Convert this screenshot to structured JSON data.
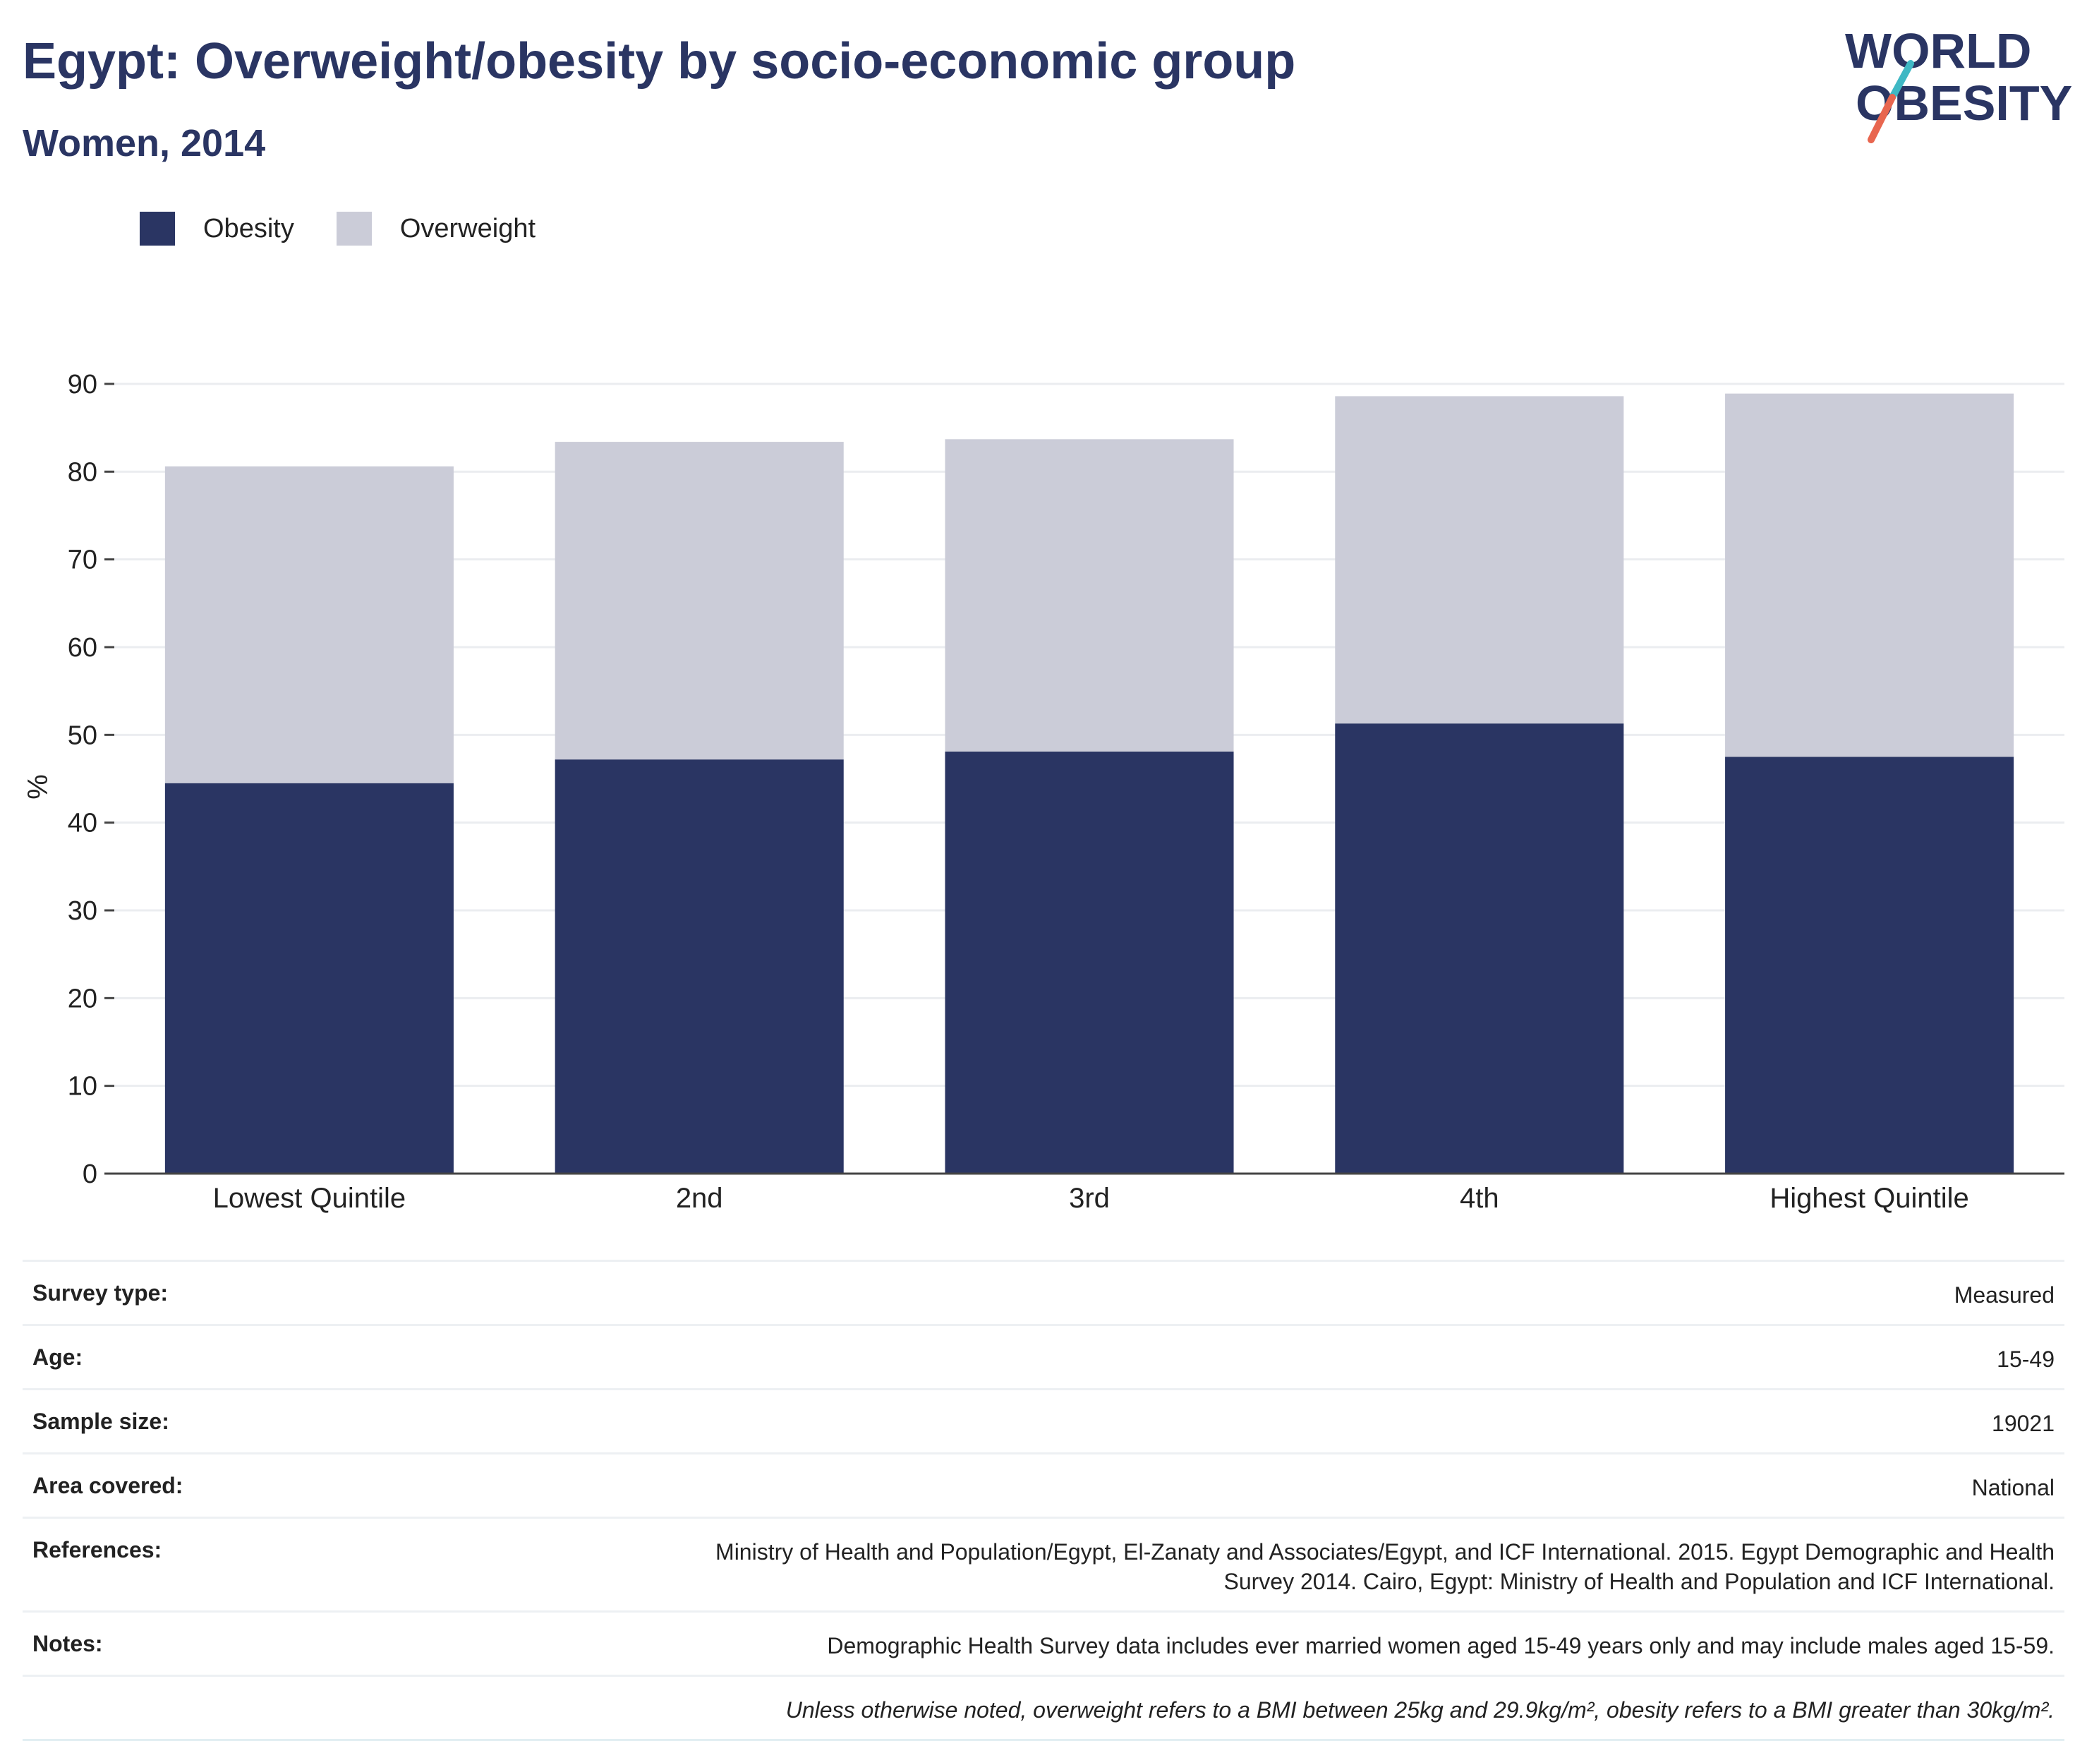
{
  "header": {
    "title": "Egypt: Overweight/obesity by socio-economic group",
    "subtitle": "Women, 2014"
  },
  "logo": {
    "line1": "WORLD",
    "line2": "OBESITY",
    "accent_colors": [
      "#3fb8c4",
      "#e8664f"
    ]
  },
  "colors": {
    "obesity": "#2a3563",
    "overweight": "#cbccd8",
    "grid": "#ebedf0",
    "axis": "#444444"
  },
  "chart_data": {
    "type": "bar",
    "stacked": true,
    "categories": [
      "Lowest Quintile",
      "2nd",
      "3rd",
      "4th",
      "Highest Quintile"
    ],
    "series": [
      {
        "name": "Obesity",
        "values": [
          44.5,
          47.2,
          48.1,
          51.3,
          47.5
        ]
      },
      {
        "name": "Overweight",
        "values": [
          36.1,
          36.2,
          35.6,
          37.3,
          41.4
        ]
      }
    ],
    "totals": [
      80.6,
      83.4,
      83.7,
      88.6,
      88.9
    ],
    "ylabel": "%",
    "xlabel": "",
    "ylim": [
      0,
      90
    ],
    "yticks": [
      0,
      10,
      20,
      30,
      40,
      50,
      60,
      70,
      80,
      90
    ],
    "grid": true,
    "legend_position": "top-left"
  },
  "info": {
    "survey_type": {
      "label": "Survey type:",
      "value": "Measured"
    },
    "age": {
      "label": "Age:",
      "value": "15-49"
    },
    "sample_size": {
      "label": "Sample size:",
      "value": "19021"
    },
    "area": {
      "label": "Area covered:",
      "value": "National"
    },
    "references": {
      "label": "References:",
      "value_line1": "Ministry of Health and Population/Egypt, El-Zanaty and Associates/Egypt, and ICF International. 2015. Egypt Demographic and Health",
      "value_line2": "Survey 2014. Cairo, Egypt: Ministry of Health and Population and ICF International."
    },
    "notes": {
      "label": "Notes:",
      "value": "Demographic Health Survey data includes ever married women aged 15-49 years only and may include males aged 15-59."
    },
    "definition": "Unless otherwise noted, overweight refers to a BMI between 25kg and 29.9kg/m², obesity refers to a BMI greater than 30kg/m²."
  }
}
